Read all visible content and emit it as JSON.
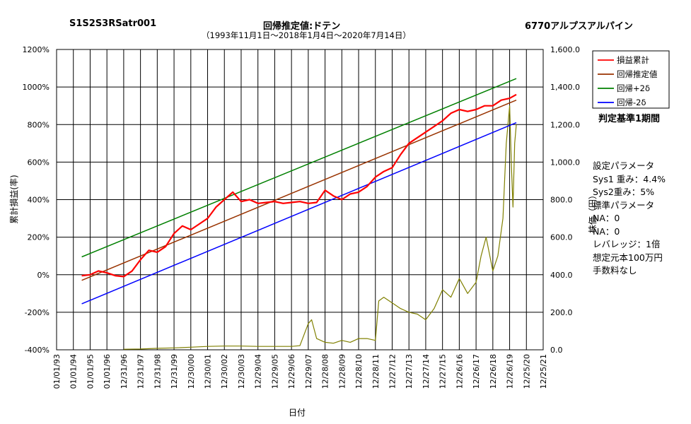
{
  "header": {
    "left_title": "S1S2S3RSatr001",
    "center_title": "回帰推定値:ドテン",
    "center_subtitle": "（1993年11月1日～2018年1月4日～2020年7月14日）",
    "right_title": "6770アルプスアルパイン"
  },
  "overlay_label": "判定基準1期間",
  "params": {
    "lines": [
      "設定パラメータ",
      "Sys1 重み：4.4%",
      "Sys2重み：5%",
      "標準パラメータ",
      "NA：0",
      "NA：0",
      "レバレッジ：1倍",
      "想定元本100万円",
      "手数料なし"
    ]
  },
  "chart_data": {
    "type": "line",
    "title": "",
    "xlabel": "日付",
    "ylabel_left": "累計損益(率)",
    "ylabel_right": "株価（円）",
    "x_tick_labels": [
      "01/01/93",
      "01/01/94",
      "01/01/95",
      "01/01/96",
      "12/31/96",
      "12/31/97",
      "12/31/98",
      "12/31/99",
      "12/30/00",
      "12/30/01",
      "12/30/02",
      "12/30/03",
      "12/29/04",
      "12/29/05",
      "12/29/06",
      "12/29/07",
      "12/28/08",
      "12/28/09",
      "12/28/10",
      "12/28/11",
      "12/27/12",
      "12/27/13",
      "12/27/14",
      "12/27/15",
      "12/26/16",
      "12/26/17",
      "12/26/18",
      "12/26/19",
      "12/25/20",
      "12/25/21"
    ],
    "x_range": [
      1993.0,
      2022.0
    ],
    "y_left_ticks": [
      "-400%",
      "-200%",
      "0%",
      "200%",
      "400%",
      "600%",
      "800%",
      "1000%",
      "1200%"
    ],
    "y_left_range": [
      -400,
      1200
    ],
    "y_right_ticks": [
      "0.0",
      "200.0",
      "400.0",
      "600.0",
      "800.0",
      "1,000.0",
      "1,200.0",
      "1,400.0",
      "1,600.0"
    ],
    "y_right_range": [
      0,
      1600
    ],
    "grid": true,
    "legend_position": "top-right",
    "series": [
      {
        "name": "損益累計",
        "color": "#ff0000",
        "axis": "left",
        "x": [
          1994.5,
          1995.0,
          1995.5,
          1996.0,
          1996.5,
          1997.0,
          1997.5,
          1998.0,
          1998.5,
          1999.0,
          1999.5,
          2000.0,
          2000.5,
          2001.0,
          2001.5,
          2002.0,
          2002.5,
          2003.0,
          2003.5,
          2004.0,
          2004.5,
          2005.0,
          2005.5,
          2006.0,
          2006.5,
          2007.0,
          2007.5,
          2008.0,
          2008.5,
          2009.0,
          2009.5,
          2010.0,
          2010.5,
          2011.0,
          2011.5,
          2012.0,
          2012.5,
          2013.0,
          2013.5,
          2014.0,
          2014.5,
          2015.0,
          2015.5,
          2016.0,
          2016.5,
          2017.0,
          2017.5,
          2018.0,
          2018.5,
          2019.0,
          2019.5,
          2020.0,
          2020.4
        ],
        "values": [
          -5,
          0,
          20,
          10,
          -5,
          -10,
          20,
          80,
          130,
          120,
          150,
          220,
          260,
          240,
          270,
          300,
          360,
          400,
          440,
          390,
          400,
          380,
          385,
          390,
          380,
          385,
          390,
          380,
          385,
          450,
          420,
          400,
          430,
          440,
          470,
          520,
          550,
          570,
          640,
          700,
          730,
          760,
          790,
          820,
          860,
          880,
          870,
          880,
          900,
          900,
          930,
          940,
          960
        ]
      },
      {
        "name": "回帰推定値",
        "color": "#993300",
        "axis": "left",
        "x": [
          1994.5,
          2020.4
        ],
        "values": [
          -30,
          930
        ]
      },
      {
        "name": "回帰+2δ",
        "color": "#008000",
        "axis": "left",
        "x": [
          1994.5,
          2020.4
        ],
        "values": [
          95,
          1045
        ]
      },
      {
        "name": "回帰-2δ",
        "color": "#0000ff",
        "axis": "left",
        "x": [
          1994.5,
          2020.4
        ],
        "values": [
          -155,
          810
        ]
      },
      {
        "name": "株価",
        "color": "#808000",
        "axis": "right",
        "x": [
          1997.0,
          1998.0,
          1999.0,
          2000.0,
          2001.0,
          2002.0,
          2003.0,
          2004.0,
          2005.0,
          2006.0,
          2007.0,
          2007.5,
          2008.0,
          2008.2,
          2008.5,
          2009.0,
          2009.5,
          2010.0,
          2010.5,
          2011.0,
          2011.5,
          2012.0,
          2012.2,
          2012.5,
          2013.0,
          2013.5,
          2014.0,
          2014.5,
          2015.0,
          2015.5,
          2016.0,
          2016.5,
          2017.0,
          2017.5,
          2018.0,
          2018.3,
          2018.6,
          2019.0,
          2019.3,
          2019.6,
          2019.8,
          2020.0,
          2020.1,
          2020.2,
          2020.3,
          2020.4
        ],
        "values": [
          3,
          4,
          8,
          10,
          14,
          18,
          20,
          20,
          18,
          18,
          18,
          22,
          140,
          160,
          60,
          40,
          35,
          50,
          40,
          60,
          60,
          50,
          260,
          280,
          250,
          220,
          200,
          190,
          160,
          220,
          320,
          280,
          380,
          300,
          360,
          500,
          600,
          420,
          500,
          700,
          1100,
          1300,
          1000,
          760,
          1100,
          1200
        ]
      }
    ]
  }
}
